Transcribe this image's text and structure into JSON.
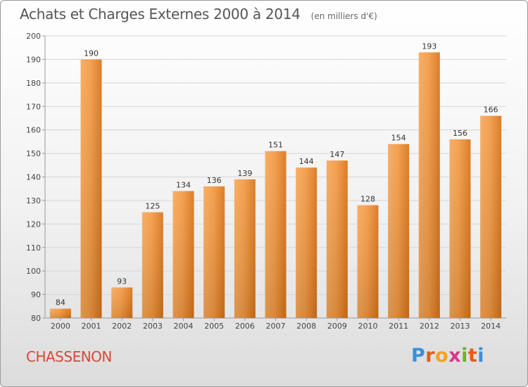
{
  "header": {
    "title": "Achats et Charges Externes 2000 à 2014",
    "subtitle": "(en milliers d'€)"
  },
  "footer": {
    "commune": "CHASSENON",
    "logo": [
      "P",
      "r",
      "o",
      "x",
      "i",
      "t",
      "i"
    ]
  },
  "colors": {
    "bar_light": "#f7a85a",
    "bar_dark": "#d87419",
    "title": "#555555",
    "commune": "#d44a3a"
  },
  "chart_data": {
    "type": "bar",
    "title": "Achats et Charges Externes 2000 à 2014",
    "subtitle": "(en milliers d'€)",
    "categories": [
      "2000",
      "2001",
      "2002",
      "2003",
      "2004",
      "2005",
      "2006",
      "2007",
      "2008",
      "2009",
      "2010",
      "2011",
      "2012",
      "2013",
      "2014"
    ],
    "values": [
      84,
      190,
      93,
      125,
      134,
      136,
      139,
      151,
      144,
      147,
      128,
      154,
      193,
      156,
      166
    ],
    "ylim": [
      80,
      200
    ],
    "yticks": [
      80,
      90,
      100,
      110,
      120,
      130,
      140,
      150,
      160,
      170,
      180,
      190,
      200
    ],
    "grid": true,
    "data_labels": true
  }
}
